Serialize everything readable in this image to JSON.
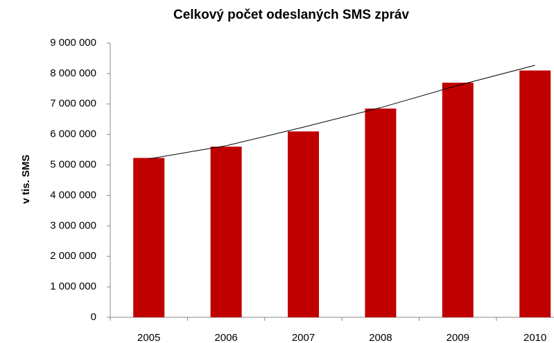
{
  "chart_data": {
    "type": "bar",
    "title": "Celkový počet odeslaných SMS zpráv",
    "y_label": "v tis. SMS",
    "categories": [
      "2005",
      "2006",
      "2007",
      "2008",
      "2009",
      "2010"
    ],
    "values": [
      5230000,
      5600000,
      6100000,
      6850000,
      7700000,
      8100000
    ],
    "color": "#c00000",
    "trendline": {
      "color": "#000000",
      "values": [
        5200000,
        5630000,
        6240000,
        6880000,
        7610000,
        8270000
      ]
    },
    "ylim": [
      0,
      9000000
    ],
    "yticks": [
      0,
      {
        "value": 1000000,
        "label": "1 000 000"
      },
      {
        "value": 2000000,
        "label": "2 000 000"
      },
      {
        "value": 3000000,
        "label": "3 000 000"
      },
      {
        "value": 4000000,
        "label": "4 000 000"
      },
      {
        "value": 5000000,
        "label": "5 000 000"
      },
      {
        "value": 6000000,
        "label": "6 000 000"
      },
      {
        "value": 7000000,
        "label": "7 000 000"
      },
      {
        "value": 8000000,
        "label": "8 000 000"
      },
      {
        "value": 9000000,
        "label": "9 000 000"
      }
    ],
    "grid": false
  }
}
